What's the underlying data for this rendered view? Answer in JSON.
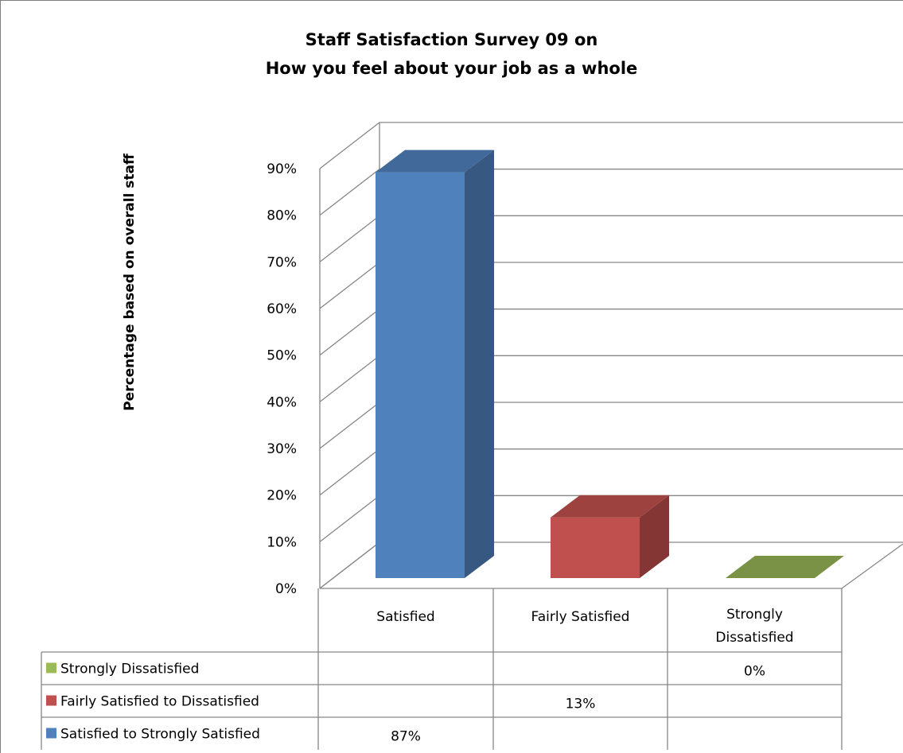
{
  "chart_data": {
    "type": "bar",
    "title_line1": "Staff Satisfaction Survey 09 on",
    "title_line2": "How you feel about your job as a whole",
    "xlabel": "",
    "ylabel": "Percentage based on overall staff",
    "ylim": [
      0,
      90
    ],
    "yticks": [
      "0%",
      "10%",
      "20%",
      "30%",
      "40%",
      "50%",
      "60%",
      "70%",
      "80%",
      "90%"
    ],
    "grid": true,
    "categories": [
      "Satisfied",
      "Fairly Satisfied",
      "Strongly Dissatisfied"
    ],
    "category_display": [
      [
        "Satisfied"
      ],
      [
        "Fairly Satisfied"
      ],
      [
        "Strongly",
        "Dissatisfied"
      ]
    ],
    "series": [
      {
        "name": "Strongly Dissatisfied",
        "color": "#9bbb59",
        "values": [
          null,
          null,
          0
        ],
        "labels": [
          "",
          "",
          "0%"
        ]
      },
      {
        "name": "Fairly Satisfied to Dissatisfied",
        "color": "#c0504d",
        "values": [
          null,
          13,
          null
        ],
        "labels": [
          "",
          "13%",
          ""
        ]
      },
      {
        "name": "Satisfied to Strongly Satisfied",
        "color": "#4f81bd",
        "values": [
          87,
          null,
          null
        ],
        "labels": [
          "87%",
          "",
          ""
        ]
      }
    ],
    "legend": "data-table"
  }
}
